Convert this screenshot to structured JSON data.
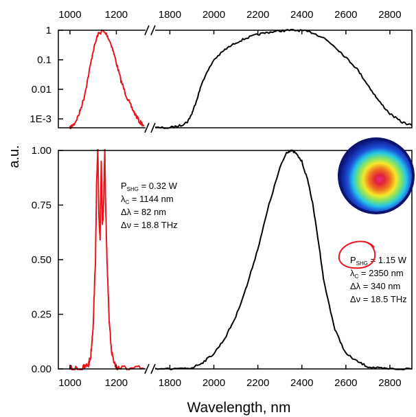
{
  "chart_data": {
    "type": "line",
    "xlabel": "Wavelength, nm",
    "ylabel": "a.u.",
    "x_axis": {
      "segments": [
        {
          "range": [
            950,
            1320
          ],
          "ticks": [
            1000,
            1200
          ]
        },
        {
          "range": [
            1730,
            2900
          ],
          "ticks": [
            1800,
            2000,
            2200,
            2400,
            2600,
            2800
          ]
        }
      ],
      "labels": [
        "1000",
        "1200",
        "1800",
        "2000",
        "2200",
        "2400",
        "2600",
        "2800"
      ],
      "break_symbol": "//"
    },
    "panels": [
      {
        "name": "top",
        "yscale": "log",
        "ylim": [
          0.0005,
          1
        ],
        "yticks": [
          0.001,
          0.01,
          0.1,
          1
        ],
        "ytick_labels": [
          "1E-3",
          "0.01",
          "0.1",
          "1"
        ],
        "series": [
          {
            "color": "#e8141b",
            "x": [
              1000,
              1020,
              1040,
              1060,
              1080,
              1100,
              1120,
              1140,
              1160,
              1180,
              1200,
              1220,
              1240,
              1260,
              1280,
              1300,
              1320
            ],
            "y": [
              0.0005,
              0.0007,
              0.0015,
              0.005,
              0.03,
              0.2,
              0.7,
              0.95,
              0.7,
              0.3,
              0.08,
              0.02,
              0.007,
              0.003,
              0.0015,
              0.0008,
              0.0006
            ]
          },
          {
            "color": "#000000",
            "x": [
              1730,
              1800,
              1850,
              1880,
              1900,
              1920,
              1950,
              2000,
              2050,
              2100,
              2150,
              2200,
              2250,
              2300,
              2350,
              2400,
              2450,
              2500,
              2550,
              2600,
              2650,
              2700,
              2750,
              2800,
              2850,
              2900
            ],
            "y": [
              0.0005,
              0.0005,
              0.0006,
              0.0008,
              0.0015,
              0.004,
              0.02,
              0.1,
              0.22,
              0.38,
              0.55,
              0.72,
              0.85,
              0.95,
              1.0,
              0.97,
              0.82,
              0.55,
              0.28,
              0.12,
              0.05,
              0.014,
              0.004,
              0.0015,
              0.0008,
              0.0006
            ]
          }
        ]
      },
      {
        "name": "bottom",
        "yscale": "linear",
        "ylim": [
          0,
          1.0
        ],
        "yticks": [
          0,
          0.25,
          0.5,
          0.75,
          1.0
        ],
        "ytick_labels": [
          "0.00",
          "0.25",
          "0.50",
          "0.75",
          "1.00"
        ],
        "series": [
          {
            "color": "#e8141b",
            "x": [
              1000,
              1040,
              1060,
              1080,
              1090,
              1100,
              1110,
              1115,
              1120,
              1125,
              1130,
              1135,
              1140,
              1145,
              1150,
              1155,
              1160,
              1165,
              1170,
              1180,
              1190,
              1200,
              1220,
              1260,
              1320
            ],
            "y": [
              0,
              0,
              0.005,
              0.02,
              0.06,
              0.2,
              0.5,
              0.85,
              1.0,
              0.7,
              0.6,
              0.95,
              0.65,
              0.75,
              1.0,
              0.7,
              0.5,
              0.35,
              0.2,
              0.08,
              0.03,
              0.01,
              0.003,
              0,
              0
            ]
          },
          {
            "color": "#000000",
            "x": [
              1730,
              1850,
              1900,
              1950,
              2000,
              2050,
              2100,
              2150,
              2200,
              2250,
              2300,
              2330,
              2350,
              2370,
              2400,
              2430,
              2450,
              2480,
              2500,
              2550,
              2600,
              2650,
              2700,
              2750,
              2800,
              2900
            ],
            "y": [
              0,
              0,
              0.005,
              0.03,
              0.07,
              0.14,
              0.24,
              0.38,
              0.55,
              0.75,
              0.92,
              0.99,
              1.0,
              0.99,
              0.95,
              0.85,
              0.75,
              0.55,
              0.4,
              0.18,
              0.07,
              0.035,
              0.01,
              0.003,
              0,
              0
            ]
          }
        ],
        "annotations": [
          {
            "lines": [
              [
                "P",
                "SHG",
                " = 0.32 W"
              ],
              [
                "λ",
                "C",
                " = 1144 nm"
              ],
              [
                "Δλ",
                "",
                " = 82 nm"
              ],
              [
                "Δν",
                "",
                " = 18.8 THz"
              ]
            ]
          },
          {
            "lines": [
              [
                "P",
                "SHG",
                " = 1.15 W"
              ],
              [
                "λ",
                "C",
                " = 2350 nm"
              ],
              [
                "Δλ",
                "",
                " = 340 nm"
              ],
              [
                "Δν",
                "",
                " = 18.5 THz"
              ]
            ]
          }
        ]
      }
    ],
    "grid": false,
    "inset": {
      "type": "beam-profile-image",
      "colors": [
        "#0f1a8a",
        "#1b4fd8",
        "#25c7e8",
        "#7fe36a",
        "#f5e82a",
        "#f07a1e",
        "#e0233c",
        "#e42a8c"
      ]
    },
    "highlight_mark": {
      "color": "#e8141b",
      "shape": "hand-drawn-circle"
    }
  }
}
